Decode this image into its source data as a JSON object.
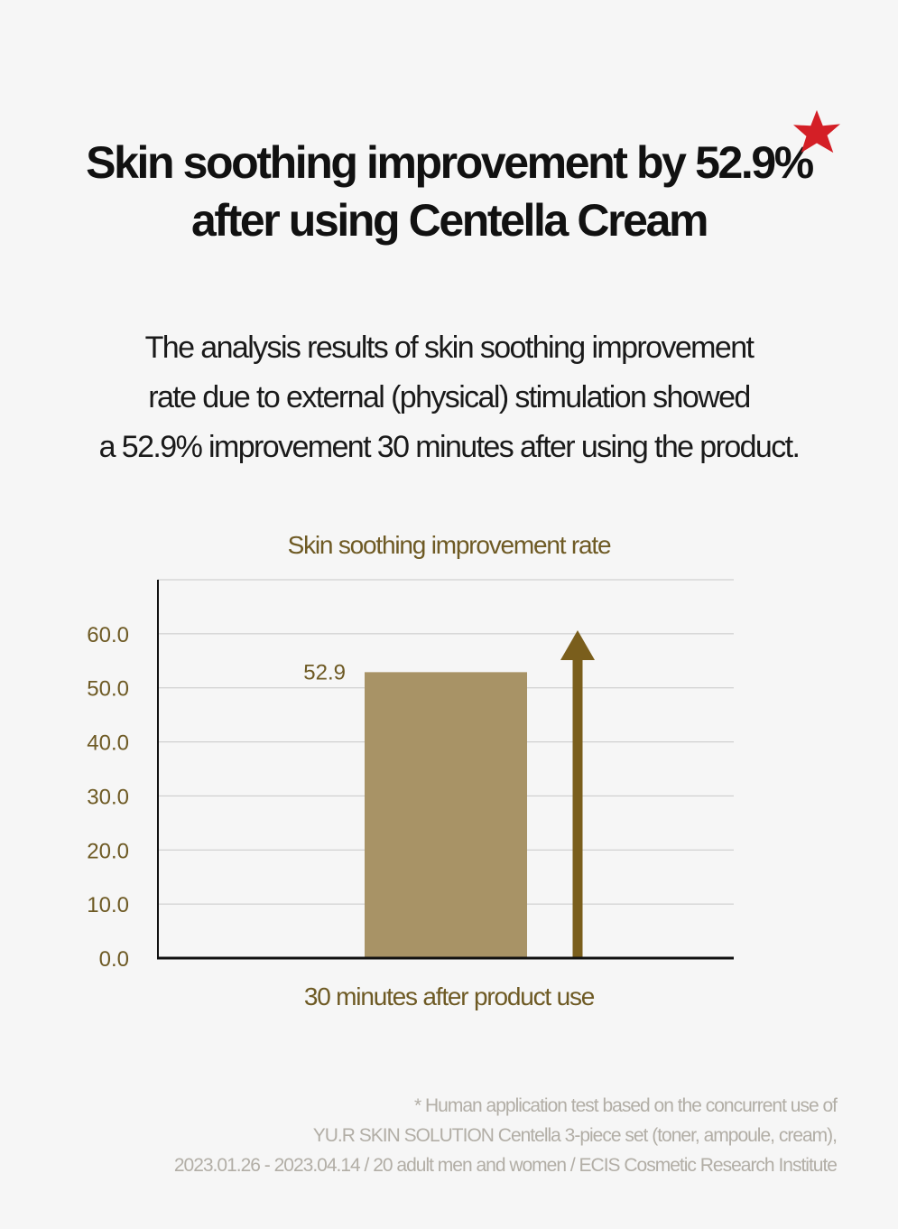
{
  "headline": {
    "line1": "Skin soothing improvement by 52.9%",
    "line2": "after using Centella Cream"
  },
  "decoration": {
    "icon": "star-icon",
    "color": "#d41f26"
  },
  "intro": {
    "line1": "The analysis results of skin soothing improvement",
    "line2": "rate due to external (physical) stimulation showed",
    "line3": "a 52.9% improvement 30 minutes after using the product."
  },
  "chart_data": {
    "type": "bar",
    "title": "Skin soothing improvement rate",
    "categories": [
      "30 minutes after product use"
    ],
    "values": [
      52.9
    ],
    "data_labels": [
      "52.9"
    ],
    "ylim": [
      0,
      70
    ],
    "yticks": [
      "0.0",
      "10.0",
      "20.0",
      "30.0",
      "40.0",
      "50.0",
      "60.0"
    ],
    "grid": true,
    "annotation": "upward-arrow",
    "colors": {
      "bar": "#a89366",
      "arrow": "#7a5e1c",
      "text": "#6e5a24",
      "grid": "#c8c8c8",
      "axis": "#111111"
    }
  },
  "footnote": {
    "line1": "* Human application test based on the concurrent use of",
    "line2": "YU.R SKIN SOLUTION Centella 3-piece set (toner, ampoule, cream),",
    "line3": "2023.01.26 - 2023.04.14 / 20 adult men and women / ECIS Cosmetic Research Institute"
  }
}
